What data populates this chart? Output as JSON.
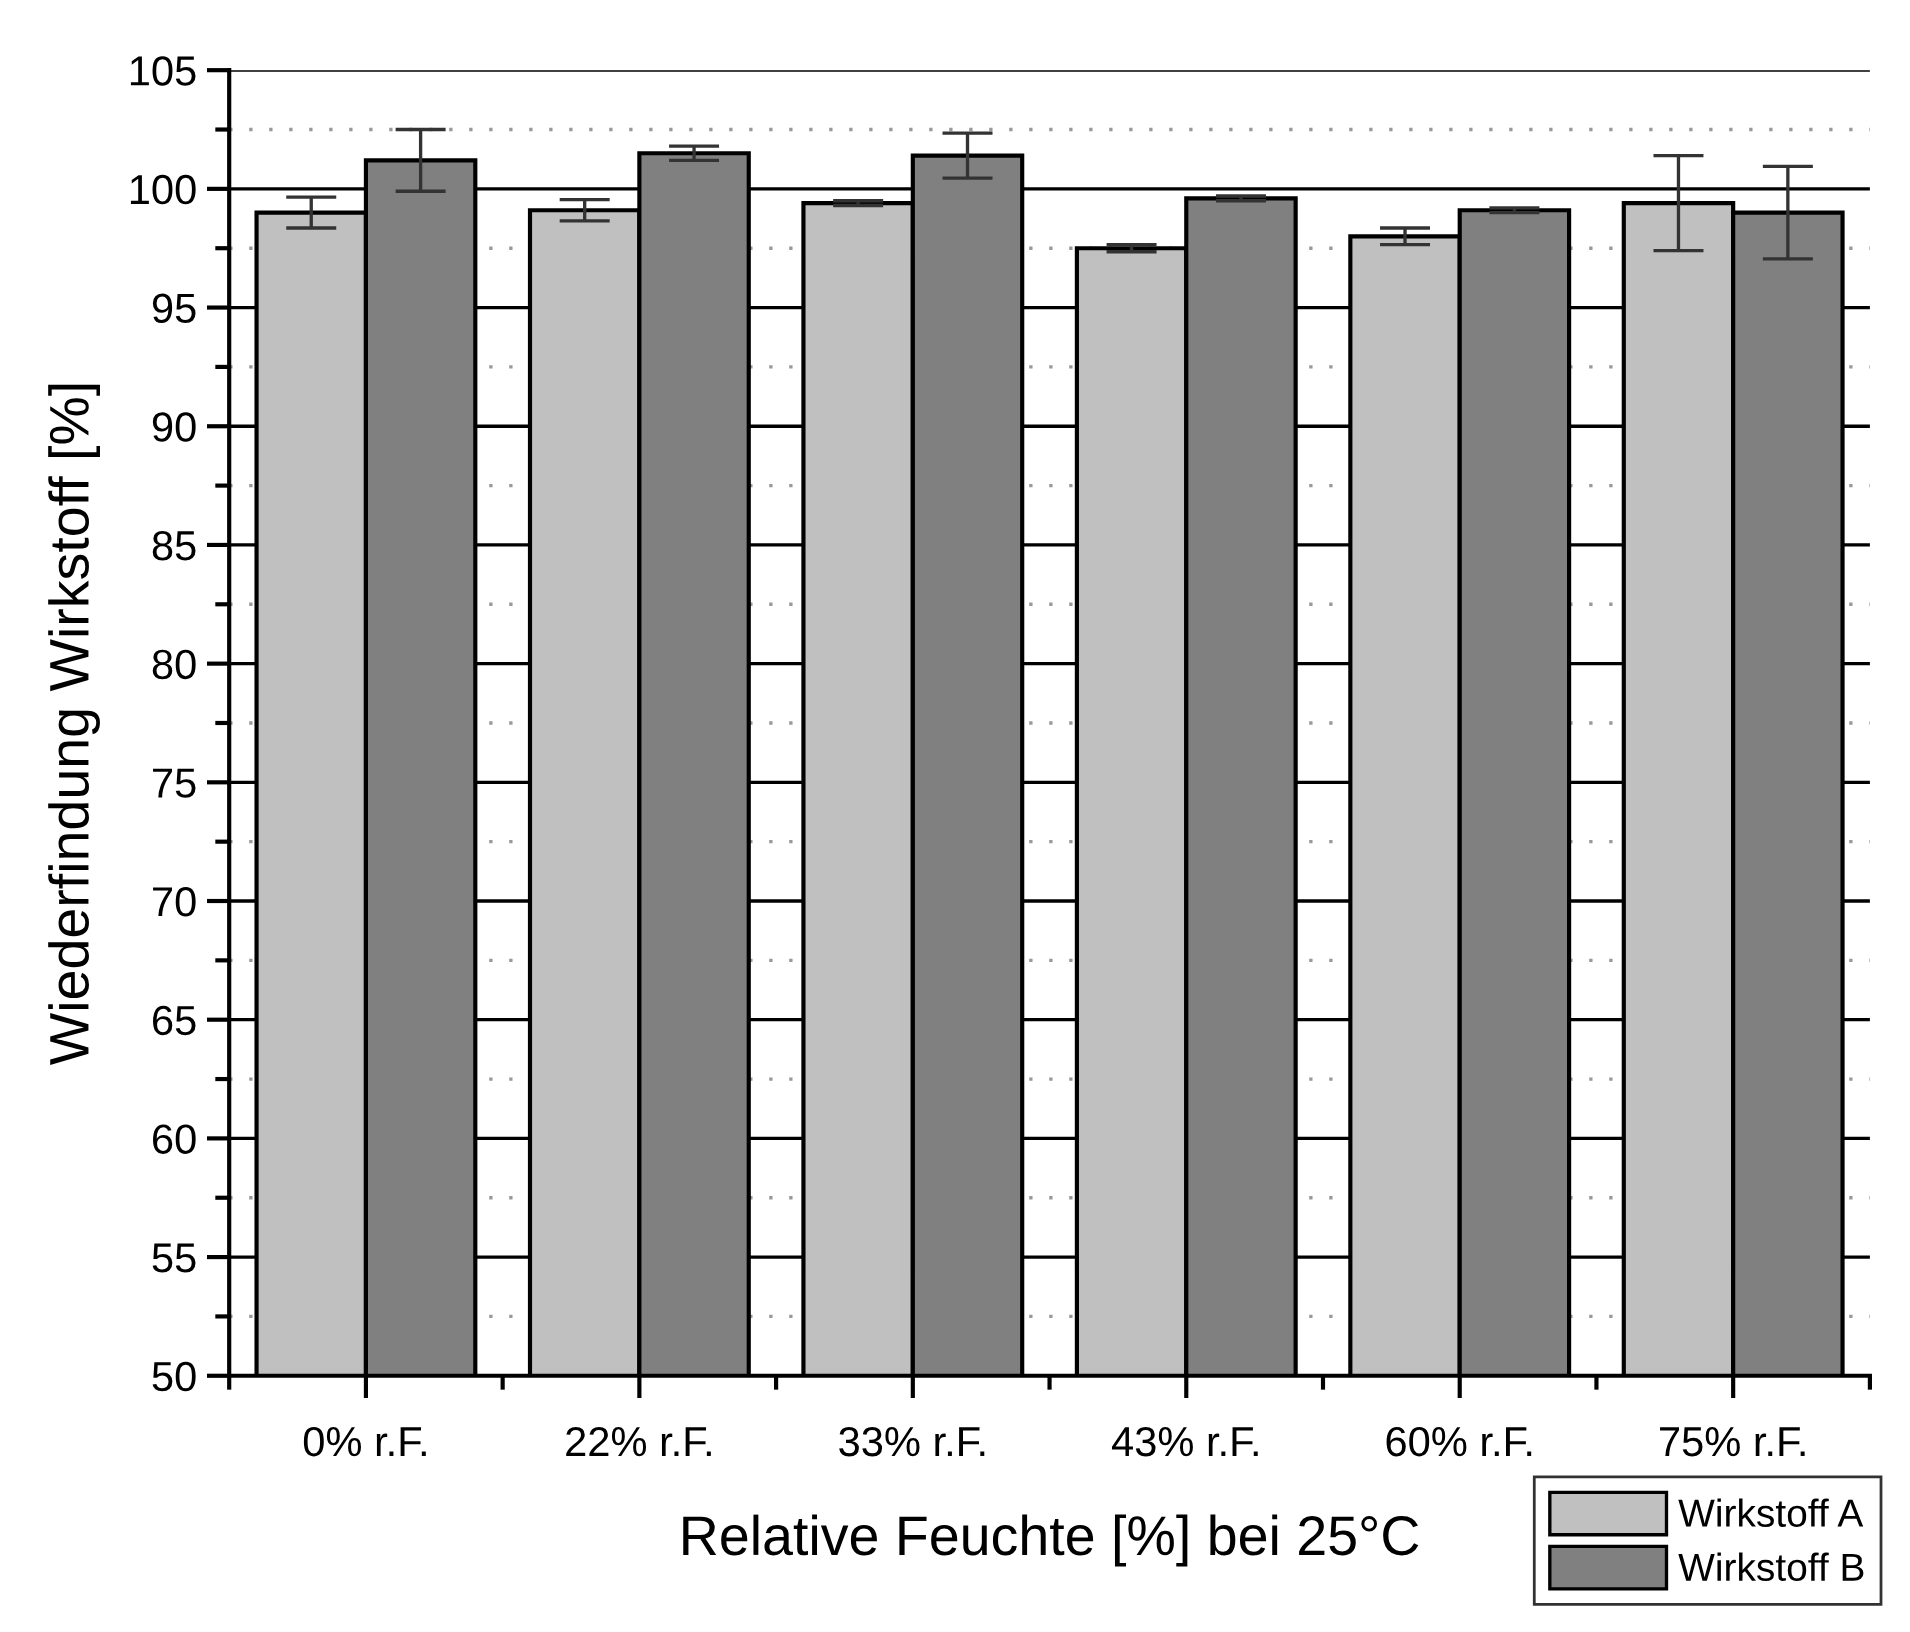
{
  "chart_data": {
    "type": "bar",
    "xlabel": "Relative Feuchte [%] bei 25°C",
    "ylabel": "Wiederfindung Wirkstoff [%]",
    "categories": [
      "0% r.F.",
      "22% r.F.",
      "33% r.F.",
      "43% r.F.",
      "60% r.F.",
      "75% r.F."
    ],
    "series": [
      {
        "name": "Wirkstoff A",
        "color": "#c0c0c0",
        "values": [
          99.0,
          99.1,
          99.4,
          97.5,
          98.0,
          99.4
        ],
        "errors": [
          0.65,
          0.45,
          0.1,
          0.15,
          0.35,
          2.0
        ]
      },
      {
        "name": "Wirkstoff B",
        "color": "#808080",
        "values": [
          101.2,
          101.5,
          101.4,
          99.6,
          99.1,
          99.0
        ],
        "errors": [
          1.3,
          0.3,
          0.95,
          0.1,
          0.1,
          1.95
        ]
      }
    ],
    "ylim": [
      50,
      105
    ],
    "yticks": [
      50,
      55,
      60,
      65,
      70,
      75,
      80,
      85,
      90,
      95,
      100,
      105
    ],
    "grid": "y",
    "legend": "bottom right"
  }
}
